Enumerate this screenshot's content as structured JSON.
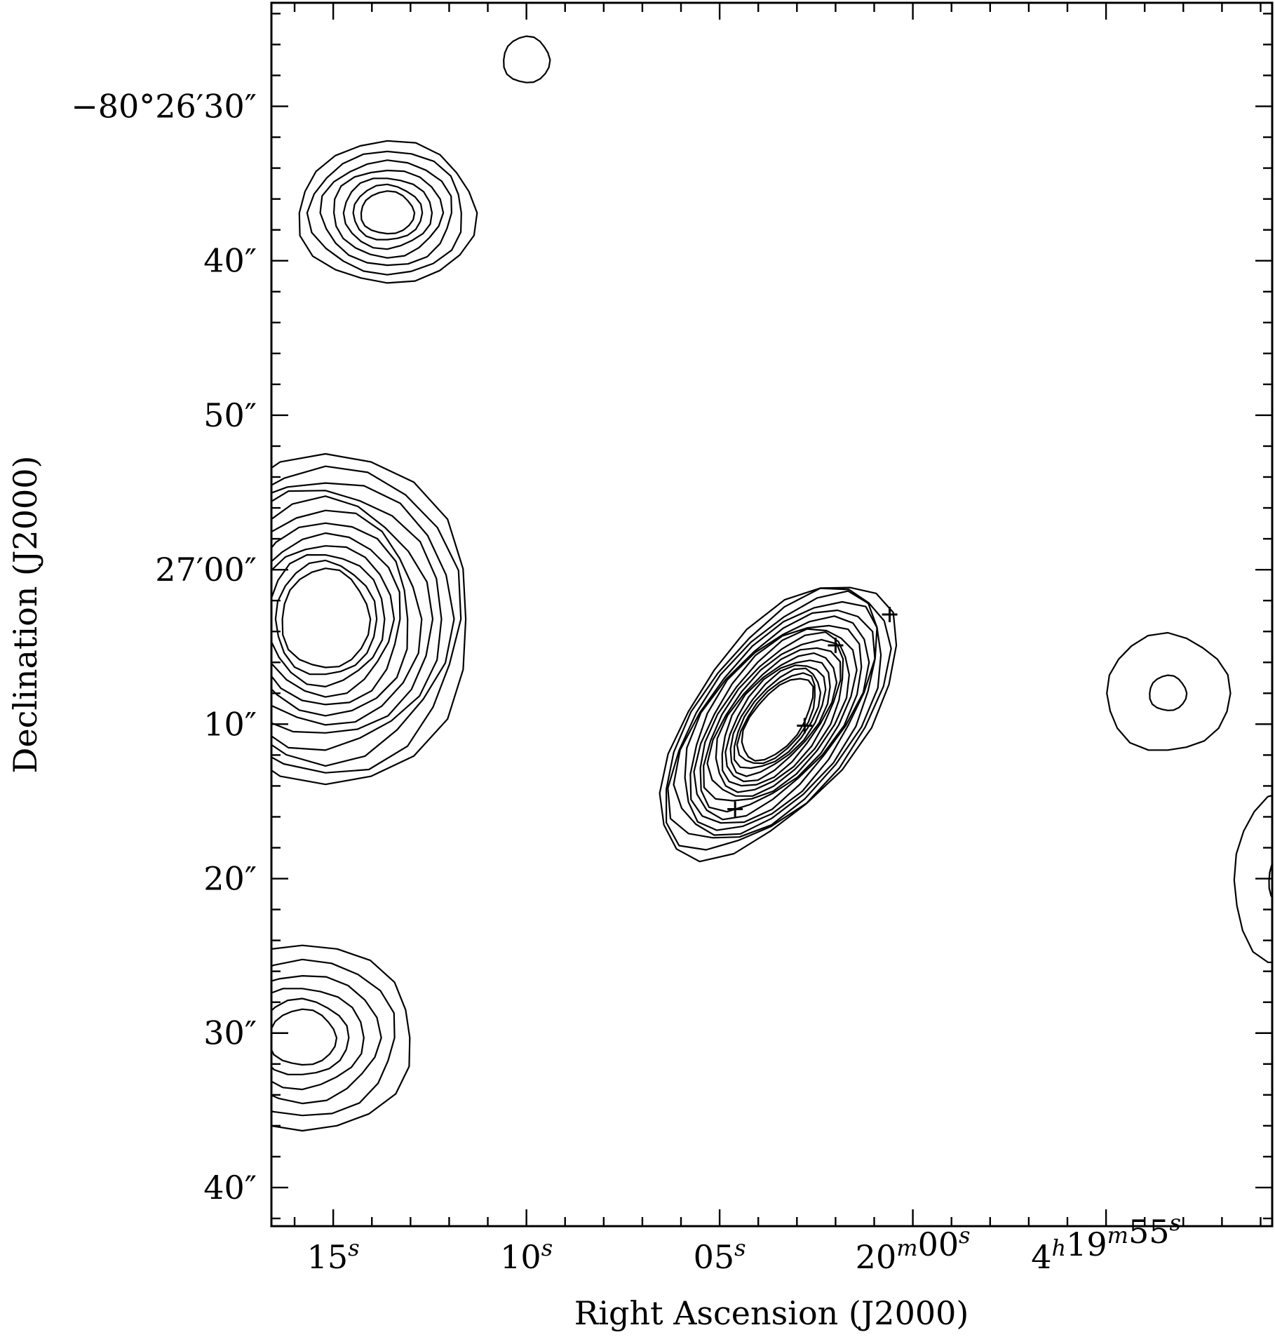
{
  "chart_data": {
    "type": "contour",
    "xlabel": "Right Ascension (J2000)",
    "ylabel": "Declination (J2000)",
    "x_ticks": [
      {
        "seconds": 15,
        "label": "15",
        "sup": "s"
      },
      {
        "seconds": 10,
        "label": "10",
        "sup": "s"
      },
      {
        "seconds": 5,
        "label": "05",
        "sup": "s"
      },
      {
        "seconds": 0,
        "label": "20",
        "sup": "m",
        "label2": "00",
        "sup2": "s"
      },
      {
        "seconds": -5,
        "label": "4",
        "sup": "h",
        "label2": "19",
        "sup2": "m",
        "label3": "55",
        "sup3": "s"
      }
    ],
    "y_ticks": [
      {
        "arcsec": 30,
        "label": "−80°26′30″"
      },
      {
        "arcsec": 40,
        "label": "40″"
      },
      {
        "arcsec": 50,
        "label": "50″"
      },
      {
        "arcsec": 60,
        "label": "27′00″"
      },
      {
        "arcsec": 70,
        "label": "10″"
      },
      {
        "arcsec": 80,
        "label": "20″"
      },
      {
        "arcsec": 90,
        "label": "30″"
      },
      {
        "arcsec": 100,
        "label": "40″"
      }
    ],
    "xlim_seconds": [
      16.6,
      -9.3
    ],
    "ylim_arcsec": [
      23.3,
      102.5
    ],
    "sources": [
      {
        "name": "main-lobe",
        "center": [
          3.5,
          69.7
        ],
        "semi_axes": [
          2.1,
          10.5
        ],
        "angle_deg": 38,
        "levels": 17
      },
      {
        "name": "north-blob",
        "center": [
          13.6,
          36.9
        ],
        "semi_axes": [
          2.3,
          4.6
        ],
        "angle_deg": 0,
        "levels": 7
      },
      {
        "name": "west-lobe",
        "center": [
          15.2,
          63.2
        ],
        "semi_axes": [
          3.8,
          10.7
        ],
        "angle_deg": 0,
        "levels": 12
      },
      {
        "name": "southwest-blob",
        "center": [
          15.8,
          90.3
        ],
        "semi_axes": [
          2.9,
          6.0
        ],
        "angle_deg": 0,
        "levels": 6
      },
      {
        "name": "east-blob",
        "center": [
          -6.6,
          68.0
        ],
        "semi_axes": [
          1.6,
          3.8
        ],
        "angle_deg": 0,
        "levels": 2
      },
      {
        "name": "far-east-blob",
        "center": [
          -9.6,
          80.1
        ],
        "semi_axes": [
          1.3,
          5.5
        ],
        "angle_deg": 0,
        "levels": 2
      },
      {
        "name": "top-blob",
        "center": [
          10.0,
          27.0
        ],
        "semi_axes": [
          0.6,
          1.5
        ],
        "angle_deg": 0,
        "levels": 1
      }
    ],
    "markers": [
      {
        "ra_s": 4.6,
        "dec_arcsec": 75.5
      },
      {
        "ra_s": 2.8,
        "dec_arcsec": 70.1
      },
      {
        "ra_s": 2.0,
        "dec_arcsec": 64.9
      },
      {
        "ra_s": 0.6,
        "dec_arcsec": 62.9
      }
    ]
  }
}
